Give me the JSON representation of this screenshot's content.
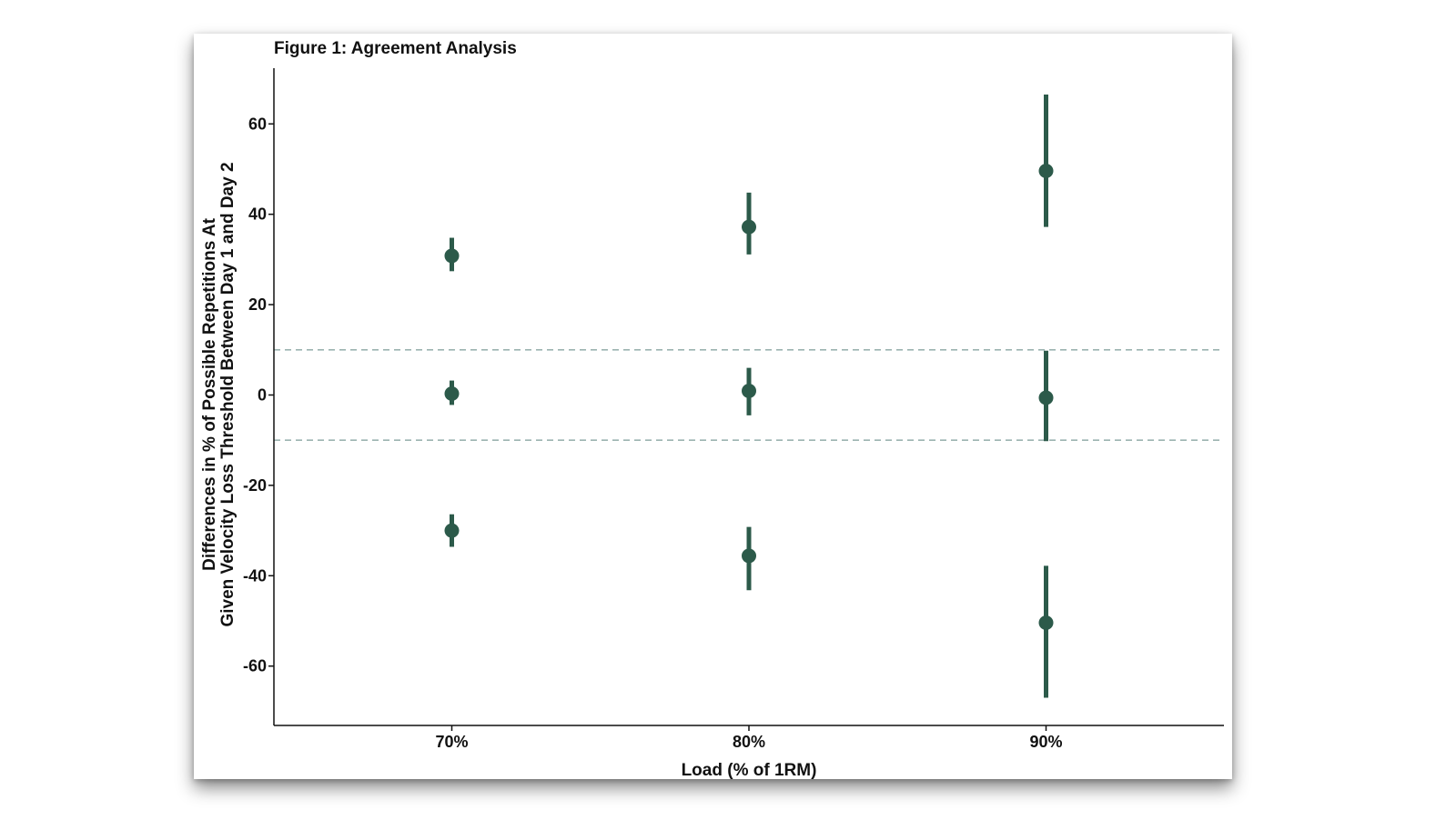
{
  "chart_data": {
    "type": "scatter",
    "title": "Figure 1: Agreement Analysis",
    "xlabel": "Load (% of 1RM)",
    "ylabel_lines": [
      "Differences in % of Possible Repetitions At",
      "Given Velocity Loss Threshold Between Day 1 and Day 2"
    ],
    "categories": [
      "70%",
      "80%",
      "90%"
    ],
    "ylim": [
      -73,
      73
    ],
    "yticks": [
      60,
      40,
      20,
      0,
      -20,
      -40,
      -60
    ],
    "ytick_labels": [
      "60",
      "40",
      "20",
      "0",
      "-20",
      "-40",
      "-60"
    ],
    "reference_lines": [
      10,
      -10
    ],
    "series": [
      {
        "estimates": [
          {
            "category": "70%",
            "value": 30.8,
            "lower": 27.4,
            "upper": 34.8
          },
          {
            "category": "80%",
            "value": 37.2,
            "lower": 31.1,
            "upper": 44.8
          },
          {
            "category": "90%",
            "value": 49.6,
            "lower": 37.2,
            "upper": 66.5
          }
        ]
      },
      {
        "estimates": [
          {
            "category": "70%",
            "value": 0.3,
            "lower": -2.2,
            "upper": 3.2
          },
          {
            "category": "80%",
            "value": 0.9,
            "lower": -4.5,
            "upper": 6.0
          },
          {
            "category": "90%",
            "value": -0.6,
            "lower": -10.2,
            "upper": 9.8
          }
        ]
      },
      {
        "estimates": [
          {
            "category": "70%",
            "value": -30.0,
            "lower": -33.6,
            "upper": -26.4
          },
          {
            "category": "80%",
            "value": -35.6,
            "lower": -43.2,
            "upper": -29.2
          },
          {
            "category": "90%",
            "value": -50.4,
            "lower": -67.0,
            "upper": -37.8
          }
        ]
      }
    ],
    "colors": {
      "point": "#2c5a4a",
      "reference_line": "#9bb3b0",
      "axis": "#111111"
    },
    "grid": false,
    "legend": "none"
  }
}
